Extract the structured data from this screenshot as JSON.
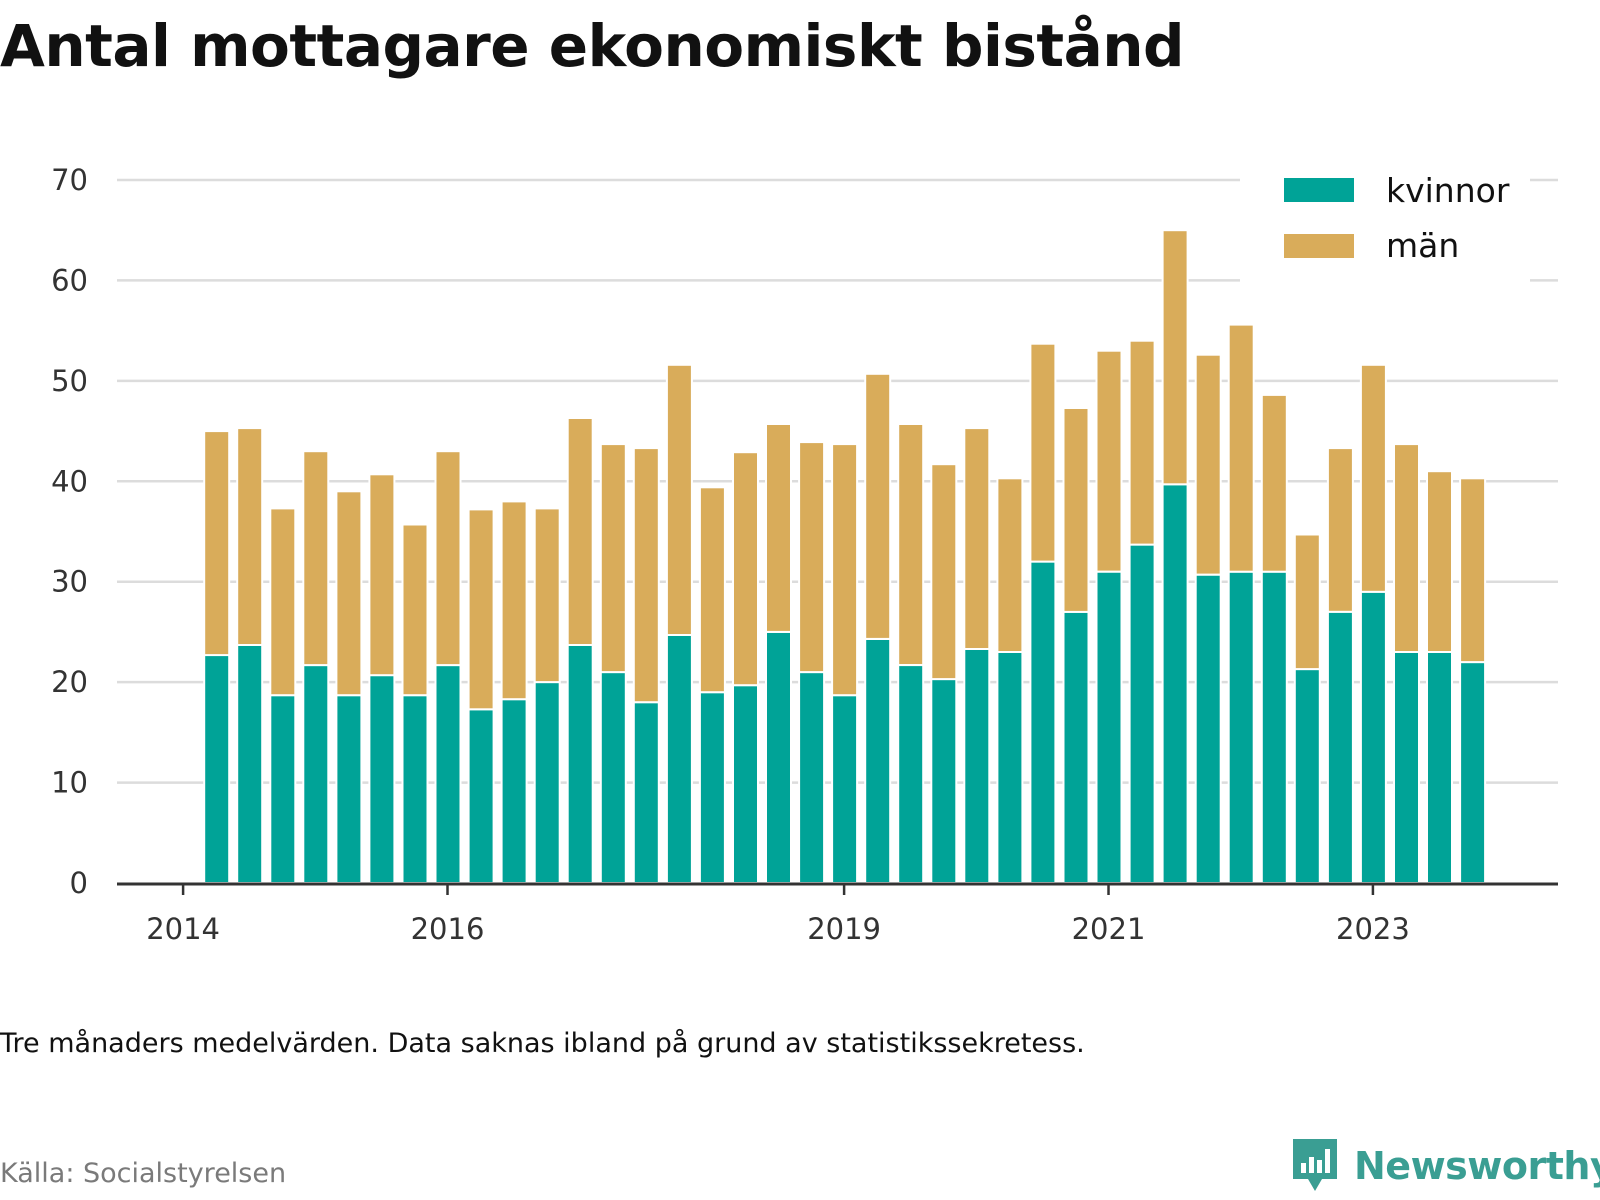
{
  "title": "Antal mottagare ekonomiskt bistånd",
  "note": "Tre månaders medelvärden. Data saknas ibland på grund av statistikssekretess.",
  "source": "Källa: Socialstyrelsen",
  "brand": {
    "name": "Newsworthy",
    "icon": "newsworthy-logo-icon",
    "color": "#3a9e93"
  },
  "chart_data": {
    "type": "bar",
    "stacked": true,
    "x_start": 2014.0,
    "x_range": [
      2013.5,
      2024.4
    ],
    "ylim": [
      0,
      70
    ],
    "yticks": [
      0,
      10,
      20,
      30,
      40,
      50,
      60,
      70
    ],
    "xticks": [
      "2014",
      "2016",
      "2019",
      "2021",
      "2023"
    ],
    "grid": true,
    "legend_position": "top-right",
    "colors": {
      "kvinnor": "#00a397",
      "män": "#d9ac5a"
    },
    "x": [
      "2014-Q2",
      "2014-Q3",
      "2014-Q4",
      "2015-Q1",
      "2015-Q2",
      "2015-Q3",
      "2015-Q4",
      "2016-Q1",
      "2016-Q2",
      "2016-Q3",
      "2016-Q4",
      "2017-Q1",
      "2017-Q2",
      "2017-Q3",
      "2017-Q4",
      "2018-Q1",
      "2018-Q2",
      "2018-Q3",
      "2018-Q4",
      "2019-Q1",
      "2019-Q2",
      "2019-Q3",
      "2019-Q4",
      "2020-Q1",
      "2020-Q2",
      "2020-Q3",
      "2020-Q4",
      "2021-Q1",
      "2021-Q2",
      "2021-Q3",
      "2021-Q4",
      "2022-Q1",
      "2022-Q2",
      "2022-Q3",
      "2022-Q4",
      "2023-Q1",
      "2023-Q2",
      "2023-Q3",
      "2023-Q4"
    ],
    "series": [
      {
        "name": "kvinnor",
        "values": [
          22.7,
          23.7,
          18.7,
          21.7,
          18.7,
          20.7,
          18.7,
          21.7,
          17.3,
          18.3,
          20.0,
          23.7,
          21.0,
          18.0,
          24.7,
          19.0,
          19.7,
          25.0,
          21.0,
          18.7,
          24.3,
          21.7,
          20.3,
          23.3,
          23.0,
          32.0,
          27.0,
          31.0,
          33.7,
          39.7,
          30.7,
          31.0,
          31.0,
          21.3,
          27.0,
          29.0,
          23.0,
          23.0,
          22.0
        ]
      },
      {
        "name": "män",
        "values": [
          22.3,
          21.6,
          18.6,
          21.3,
          20.3,
          20.0,
          17.0,
          21.3,
          19.9,
          19.7,
          17.3,
          22.6,
          22.7,
          25.3,
          26.9,
          20.4,
          23.2,
          20.7,
          22.9,
          25.0,
          26.4,
          24.0,
          21.4,
          22.0,
          17.3,
          21.7,
          20.3,
          22.0,
          20.3,
          25.3,
          21.9,
          24.6,
          17.6,
          13.4,
          16.3,
          22.6,
          20.7,
          18.0,
          18.3
        ]
      }
    ]
  }
}
